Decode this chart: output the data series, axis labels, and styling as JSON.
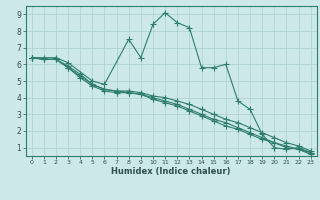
{
  "xlabel": "Humidex (Indice chaleur)",
  "xlim": [
    -0.5,
    23.5
  ],
  "ylim": [
    0.5,
    9.5
  ],
  "yticks": [
    1,
    2,
    3,
    4,
    5,
    6,
    7,
    8,
    9
  ],
  "xticks": [
    0,
    1,
    2,
    3,
    4,
    5,
    6,
    7,
    8,
    9,
    10,
    11,
    12,
    13,
    14,
    15,
    16,
    17,
    18,
    19,
    20,
    21,
    22,
    23
  ],
  "bg_color": "#cce8e8",
  "line_color": "#2e7d6e",
  "grid_color": "#aacfcf",
  "series": [
    {
      "x": [
        0,
        1,
        2,
        3,
        5,
        6,
        8,
        9,
        10,
        11,
        12,
        13,
        14,
        15,
        16,
        17,
        18,
        19,
        20,
        21,
        22,
        23
      ],
      "y": [
        6.4,
        6.4,
        6.4,
        6.1,
        5.0,
        4.8,
        7.5,
        6.4,
        8.4,
        9.1,
        8.5,
        8.2,
        5.8,
        5.8,
        6.0,
        3.8,
        3.3,
        1.8,
        1.0,
        0.9,
        1.0,
        0.7
      ]
    },
    {
      "x": [
        0,
        1,
        2,
        3,
        4,
        5,
        6,
        7,
        8,
        9,
        10,
        11,
        12,
        13,
        14,
        15,
        16,
        17,
        18,
        19,
        20,
        21,
        22,
        23
      ],
      "y": [
        6.4,
        6.3,
        6.3,
        5.9,
        5.4,
        4.8,
        4.5,
        4.4,
        4.4,
        4.3,
        4.1,
        4.0,
        3.8,
        3.6,
        3.3,
        3.0,
        2.7,
        2.5,
        2.2,
        1.9,
        1.6,
        1.3,
        1.1,
        0.8
      ]
    },
    {
      "x": [
        0,
        1,
        2,
        3,
        4,
        5,
        6,
        7,
        8,
        9,
        10,
        11,
        12,
        13,
        14,
        15,
        16,
        17,
        18,
        19,
        20,
        21,
        22,
        23
      ],
      "y": [
        6.4,
        6.3,
        6.3,
        5.8,
        5.3,
        4.8,
        4.5,
        4.4,
        4.3,
        4.2,
        4.0,
        3.8,
        3.6,
        3.3,
        3.0,
        2.7,
        2.5,
        2.2,
        1.9,
        1.6,
        1.3,
        1.1,
        0.9,
        0.7
      ]
    },
    {
      "x": [
        0,
        1,
        2,
        3,
        4,
        5,
        6,
        7,
        8,
        9,
        10,
        11,
        12,
        13,
        14,
        15,
        16,
        17,
        18,
        19,
        20,
        21,
        22,
        23
      ],
      "y": [
        6.4,
        6.3,
        6.3,
        5.8,
        5.2,
        4.7,
        4.4,
        4.3,
        4.3,
        4.2,
        3.9,
        3.7,
        3.5,
        3.2,
        2.9,
        2.6,
        2.3,
        2.1,
        1.8,
        1.5,
        1.3,
        1.0,
        0.9,
        0.6
      ]
    }
  ]
}
